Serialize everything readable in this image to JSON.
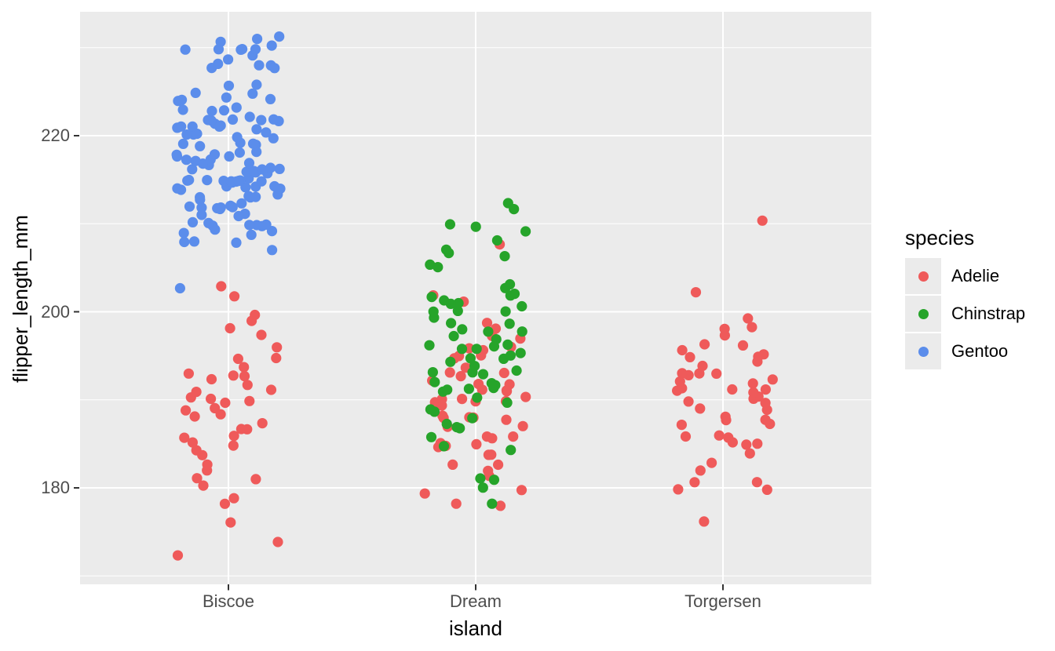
{
  "chart_data": {
    "type": "scatter",
    "subtype": "jitter-strip",
    "title": "",
    "xlabel": "island",
    "ylabel": "flipper_length_mm",
    "legend_title": "species",
    "legend_position": "right",
    "categories": [
      "Biscoe",
      "Dream",
      "Torgersen"
    ],
    "x_tick_labels": [
      "Biscoe",
      "Dream",
      "Torgersen"
    ],
    "y_major_ticks": [
      180,
      200,
      220
    ],
    "y_minor_ticks": [
      170,
      190,
      210,
      230
    ],
    "ylim": [
      169.2,
      234.1
    ],
    "grid": "on",
    "panel_bg": "#EBEBEB",
    "grid_color": "#FFFFFF",
    "tick_text_color": "#4D4D4D",
    "tick_mark_color": "#333333",
    "colors": {
      "Adelie": "#EF5A5A",
      "Chinstrap": "#26A42A",
      "Gentoo": "#5B8DEB"
    },
    "legend_entries": [
      {
        "label": "Adelie",
        "species": "Adelie"
      },
      {
        "label": "Chinstrap",
        "species": "Chinstrap"
      },
      {
        "label": "Gentoo",
        "species": "Gentoo"
      }
    ],
    "series": [
      {
        "name": "Adelie @ Biscoe",
        "species": "Adelie",
        "island": "Biscoe",
        "values": [
          172,
          174,
          176,
          178,
          179,
          180,
          181,
          181,
          182,
          183,
          184,
          184,
          185,
          185,
          186,
          186,
          187,
          187,
          187,
          188,
          188,
          189,
          189,
          190,
          190,
          190,
          190,
          191,
          191,
          192,
          192,
          193,
          193,
          193,
          194,
          195,
          195,
          196,
          197,
          198,
          199,
          200,
          202,
          203
        ]
      },
      {
        "name": "Adelie @ Dream",
        "species": "Adelie",
        "island": "Dream",
        "values": [
          178,
          178,
          179,
          180,
          181,
          182,
          183,
          183,
          184,
          184,
          185,
          185,
          185,
          185,
          186,
          186,
          186,
          187,
          187,
          188,
          188,
          188,
          188,
          188,
          189,
          189,
          190,
          190,
          190,
          190,
          190,
          190,
          191,
          191,
          191,
          192,
          192,
          192,
          193,
          193,
          193,
          194,
          194,
          195,
          195,
          195,
          196,
          196,
          196,
          197,
          197,
          198,
          199,
          201,
          202,
          208
        ]
      },
      {
        "name": "Adelie @ Torgersen",
        "species": "Adelie",
        "island": "Torgersen",
        "values": [
          176,
          180,
          180,
          181,
          181,
          182,
          183,
          184,
          185,
          185,
          185,
          186,
          186,
          186,
          187,
          187,
          188,
          188,
          188,
          189,
          189,
          190,
          190,
          190,
          190,
          191,
          191,
          191,
          191,
          191,
          192,
          192,
          192,
          193,
          193,
          193,
          193,
          194,
          194,
          195,
          195,
          195,
          196,
          196,
          196,
          197,
          198,
          198,
          199,
          202,
          210
        ]
      },
      {
        "name": "Gentoo @ Biscoe",
        "species": "Gentoo",
        "island": "Biscoe",
        "values": [
          203,
          207,
          208,
          208,
          208,
          209,
          209,
          209,
          209,
          210,
          210,
          210,
          210,
          210,
          210,
          210,
          211,
          211,
          211,
          212,
          212,
          212,
          212,
          212,
          212,
          212,
          212,
          213,
          213,
          213,
          213,
          213,
          213,
          214,
          214,
          214,
          214,
          214,
          214,
          214,
          215,
          215,
          215,
          215,
          215,
          215,
          215,
          215,
          215,
          215,
          215,
          216,
          216,
          216,
          216,
          216,
          216,
          216,
          216,
          217,
          217,
          217,
          217,
          217,
          217,
          218,
          218,
          218,
          218,
          218,
          218,
          219,
          219,
          219,
          219,
          219,
          220,
          220,
          220,
          220,
          220,
          220,
          221,
          221,
          221,
          221,
          221,
          221,
          221,
          222,
          222,
          222,
          222,
          222,
          222,
          222,
          223,
          223,
          223,
          223,
          224,
          224,
          224,
          224,
          225,
          225,
          226,
          226,
          228,
          228,
          228,
          228,
          228,
          229,
          229,
          230,
          230,
          230,
          230,
          230,
          230,
          231,
          231,
          231
        ]
      },
      {
        "name": "Chinstrap @ Dream",
        "species": "Chinstrap",
        "island": "Dream",
        "values": [
          178,
          180,
          181,
          181,
          184,
          185,
          186,
          187,
          187,
          187,
          188,
          189,
          189,
          190,
          190,
          191,
          191,
          191,
          191,
          192,
          192,
          192,
          193,
          193,
          193,
          193,
          194,
          194,
          195,
          195,
          195,
          195,
          196,
          196,
          196,
          196,
          196,
          197,
          197,
          198,
          198,
          198,
          199,
          199,
          199,
          200,
          200,
          200,
          201,
          201,
          201,
          201,
          202,
          202,
          202,
          203,
          203,
          205,
          205,
          206,
          207,
          207,
          208,
          209,
          210,
          210,
          212,
          212
        ]
      }
    ]
  }
}
